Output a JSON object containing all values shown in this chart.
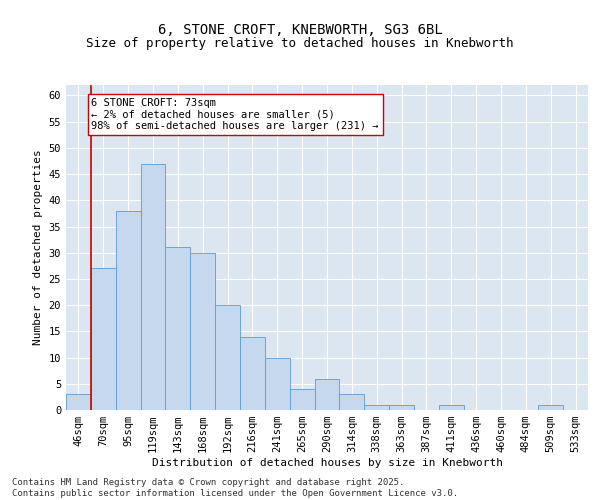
{
  "title1": "6, STONE CROFT, KNEBWORTH, SG3 6BL",
  "title2": "Size of property relative to detached houses in Knebworth",
  "xlabel": "Distribution of detached houses by size in Knebworth",
  "ylabel": "Number of detached properties",
  "categories": [
    "46sqm",
    "70sqm",
    "95sqm",
    "119sqm",
    "143sqm",
    "168sqm",
    "192sqm",
    "216sqm",
    "241sqm",
    "265sqm",
    "290sqm",
    "314sqm",
    "338sqm",
    "363sqm",
    "387sqm",
    "411sqm",
    "436sqm",
    "460sqm",
    "484sqm",
    "509sqm",
    "533sqm"
  ],
  "values": [
    3,
    27,
    38,
    47,
    31,
    30,
    20,
    14,
    10,
    4,
    6,
    3,
    1,
    1,
    0,
    1,
    0,
    0,
    0,
    1,
    0
  ],
  "bar_color": "#c5d8ee",
  "bar_edge_color": "#5b9bd5",
  "bar_edge_width": 0.6,
  "vline_x": 1.0,
  "vline_color": "#cc0000",
  "vline_linewidth": 1.2,
  "annotation_line1": "6 STONE CROFT: 73sqm",
  "annotation_line2": "← 2% of detached houses are smaller (5)",
  "annotation_line3": "98% of semi-detached houses are larger (231) →",
  "annotation_fontsize": 7.5,
  "annotation_box_color": "#ffffff",
  "annotation_box_edge_color": "#cc0000",
  "ylim": [
    0,
    62
  ],
  "yticks": [
    0,
    5,
    10,
    15,
    20,
    25,
    30,
    35,
    40,
    45,
    50,
    55,
    60
  ],
  "background_color": "#dce6f1",
  "plot_bg_color": "#dce6f1",
  "title1_fontsize": 10,
  "title2_fontsize": 9,
  "xlabel_fontsize": 8,
  "ylabel_fontsize": 8,
  "tick_fontsize": 7.5,
  "footer_text": "Contains HM Land Registry data © Crown copyright and database right 2025.\nContains public sector information licensed under the Open Government Licence v3.0.",
  "footer_fontsize": 6.5
}
